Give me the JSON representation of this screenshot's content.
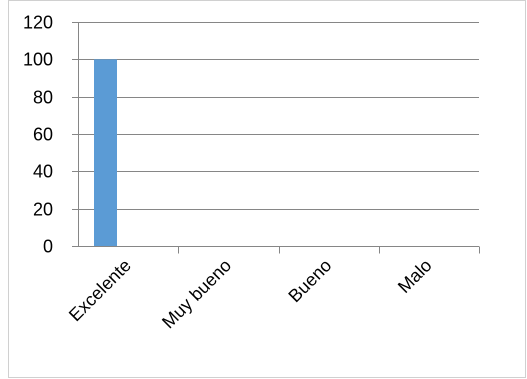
{
  "chart_data": {
    "type": "bar",
    "categories": [
      "Excelente",
      "Muy bueno",
      "Bueno",
      "Malo"
    ],
    "values": [
      100,
      0,
      0,
      0
    ],
    "title": "",
    "xlabel": "",
    "ylabel": "",
    "ylim": [
      0,
      120
    ],
    "yticks": [
      0,
      20,
      40,
      60,
      80,
      100,
      120
    ],
    "grid": true,
    "legend": "none",
    "bar_color": "#5b9bd5",
    "grid_color": "#868686"
  }
}
